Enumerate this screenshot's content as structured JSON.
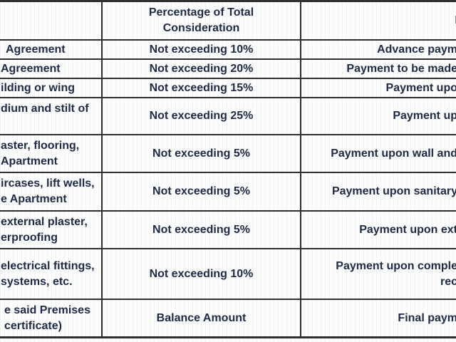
{
  "colors": {
    "text": "#202b47",
    "border": "#303030",
    "background": "#fdfdfd"
  },
  "table": {
    "header": {
      "stage": "",
      "percentage_line1": "Percentage of Total",
      "percentage_line2": "Consideration",
      "milestone_fragment": "P"
    },
    "rows": [
      {
        "stage_lines": [
          "Agreement"
        ],
        "percentage": "Not exceeding 10%",
        "milestone_lines": [
          "Advance paym"
        ]
      },
      {
        "stage_lines": [
          "Agreement"
        ],
        "percentage": "Not exceeding 20%",
        "milestone_lines": [
          "Payment to be made"
        ]
      },
      {
        "stage_lines": [
          "ilding or wing"
        ],
        "percentage": "Not exceeding 15%",
        "milestone_lines": [
          "Payment upo"
        ]
      },
      {
        "stage_lines": [
          "dium and stilt of"
        ],
        "percentage": "Not exceeding 25%",
        "milestone_lines": [
          "Payment up"
        ]
      },
      {
        "stage_lines": [
          "aster, flooring,",
          "Apartment"
        ],
        "percentage": "Not exceeding 5%",
        "milestone_lines": [
          "Payment upon wall and"
        ]
      },
      {
        "stage_lines": [
          "ircases, lift wells,",
          "e Apartment"
        ],
        "percentage": "Not exceeding 5%",
        "milestone_lines": [
          "Payment upon sanitary"
        ]
      },
      {
        "stage_lines": [
          "external plaster,",
          "erproofing"
        ],
        "percentage": "Not exceeding 5%",
        "milestone_lines": [
          "Payment upon ext"
        ]
      },
      {
        "stage_lines": [
          "electrical fittings,",
          "systems, etc."
        ],
        "percentage": "Not exceeding 10%",
        "milestone_lines": [
          "Payment upon comple",
          "rec"
        ]
      },
      {
        "stage_lines": [
          "e said Premises",
          "certificate)"
        ],
        "percentage": "Balance Amount",
        "milestone_lines": [
          "Final paym"
        ]
      }
    ]
  }
}
